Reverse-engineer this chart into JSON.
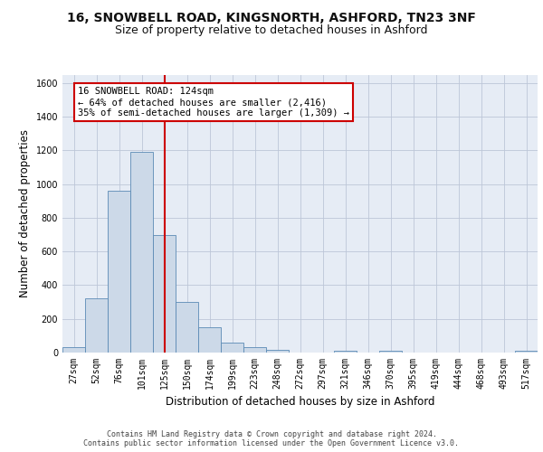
{
  "title_line1": "16, SNOWBELL ROAD, KINGSNORTH, ASHFORD, TN23 3NF",
  "title_line2": "Size of property relative to detached houses in Ashford",
  "xlabel": "Distribution of detached houses by size in Ashford",
  "ylabel": "Number of detached properties",
  "bar_labels": [
    "27sqm",
    "52sqm",
    "76sqm",
    "101sqm",
    "125sqm",
    "150sqm",
    "174sqm",
    "199sqm",
    "223sqm",
    "248sqm",
    "272sqm",
    "297sqm",
    "321sqm",
    "346sqm",
    "370sqm",
    "395sqm",
    "419sqm",
    "444sqm",
    "468sqm",
    "493sqm",
    "517sqm"
  ],
  "bar_values": [
    30,
    320,
    960,
    1190,
    700,
    300,
    150,
    60,
    30,
    15,
    0,
    0,
    10,
    0,
    10,
    0,
    0,
    0,
    0,
    0,
    10
  ],
  "bar_color": "#ccd9e8",
  "bar_edge_color": "#5b8ab5",
  "annotation_text": "16 SNOWBELL ROAD: 124sqm\n← 64% of detached houses are smaller (2,416)\n35% of semi-detached houses are larger (1,309) →",
  "annotation_box_color": "#ffffff",
  "annotation_box_edge": "#cc0000",
  "ylim": [
    0,
    1650
  ],
  "yticks": [
    0,
    200,
    400,
    600,
    800,
    1000,
    1200,
    1400,
    1600
  ],
  "grid_color": "#bdc6d8",
  "bg_color": "#e6ecf5",
  "footer_text": "Contains HM Land Registry data © Crown copyright and database right 2024.\nContains public sector information licensed under the Open Government Licence v3.0.",
  "red_line_color": "#cc0000",
  "title_fontsize": 10,
  "subtitle_fontsize": 9,
  "axis_label_fontsize": 8.5,
  "tick_fontsize": 7
}
